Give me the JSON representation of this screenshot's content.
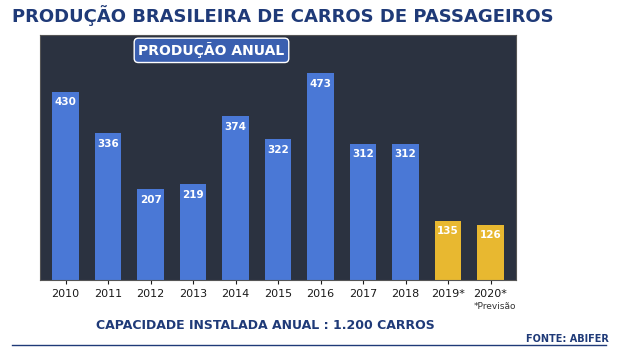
{
  "chart_data": {
    "type": "bar",
    "title": "PRODUÇÃO BRASILEIRA DE CARROS DE PASSAGEIROS",
    "subtitle": "PRODUÇÃO ANUAL",
    "categories": [
      "2010",
      "2011",
      "2012",
      "2013",
      "2014",
      "2015",
      "2016",
      "2017",
      "2018",
      "2019*",
      "2020*"
    ],
    "values": [
      430,
      336,
      207,
      219,
      374,
      322,
      473,
      312,
      312,
      135,
      126
    ],
    "colors": [
      "#4a78d6",
      "#4a78d6",
      "#4a78d6",
      "#4a78d6",
      "#4a78d6",
      "#4a78d6",
      "#4a78d6",
      "#4a78d6",
      "#4a78d6",
      "#e8b830",
      "#e8b830"
    ],
    "ylim": [
      0,
      560
    ],
    "data_labels": true,
    "tick_labels": "x",
    "annotations": {
      "forecast": "*Previsão",
      "capacity": "CAPACIDADE INSTALADA ANUAL : 1.200 CARROS",
      "source": "FONTE: ABIFER"
    }
  }
}
